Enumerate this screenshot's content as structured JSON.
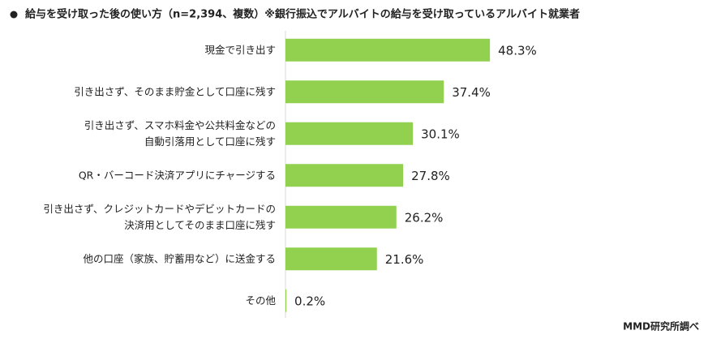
{
  "chart_data": {
    "type": "bar",
    "orientation": "horizontal",
    "title": "給与を受け取った後の使い方（n=2,394、複数）※銀行振込でアルバイトの給与を受け取っているアルバイト就業者",
    "source": "MMD研究所調べ",
    "categories": [
      "現金で引き出す",
      "引き出さず、そのまま貯金として口座に残す",
      "引き出さず、スマホ料金や公共料金などの\n自動引落用として口座に残す",
      "QR・バーコード決済アプリにチャージする",
      "引き出さず、クレジットカードやデビットカードの\n決済用としてそのまま口座に残す",
      "他の口座（家族、貯蓄用など）に送金する",
      "その他"
    ],
    "values": [
      48.3,
      37.4,
      30.1,
      27.8,
      26.2,
      21.6,
      0.2
    ],
    "value_labels": [
      "48.3%",
      "37.4%",
      "30.1%",
      "27.8%",
      "26.2%",
      "21.6%",
      "0.2%"
    ],
    "color": "#92d050"
  }
}
